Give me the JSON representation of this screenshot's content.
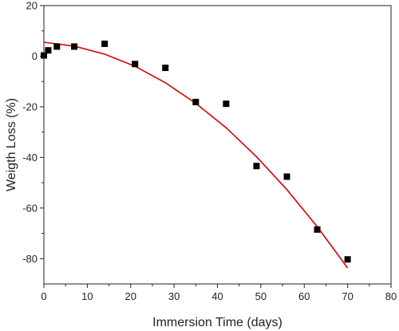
{
  "chart_data": {
    "type": "scatter",
    "xlabel": "Immersion Time (days)",
    "ylabel": "Weigth Loss (%)",
    "xlim": [
      0,
      80
    ],
    "ylim": [
      -90,
      20
    ],
    "x_ticks": [
      0,
      10,
      20,
      30,
      40,
      50,
      60,
      70,
      80
    ],
    "y_ticks": [
      20,
      0,
      -20,
      -40,
      -60,
      -80
    ],
    "grid": false,
    "series": [
      {
        "marker": "square",
        "color": "#000000",
        "points": [
          {
            "x": 0,
            "y": 0.3
          },
          {
            "x": 1,
            "y": 2.3
          },
          {
            "x": 3,
            "y": 3.8
          },
          {
            "x": 7,
            "y": 3.8
          },
          {
            "x": 14,
            "y": 4.9
          },
          {
            "x": 21,
            "y": -3.1
          },
          {
            "x": 28,
            "y": -4.6
          },
          {
            "x": 35,
            "y": -18.1
          },
          {
            "x": 42,
            "y": -18.8
          },
          {
            "x": 49,
            "y": -43.4
          },
          {
            "x": 56,
            "y": -47.6
          },
          {
            "x": 63,
            "y": -68.5
          },
          {
            "x": 70,
            "y": -80.3
          }
        ]
      },
      {
        "type": "line",
        "color": "#dd0000",
        "fit": "quadratic",
        "x": [
          0,
          7,
          14,
          21,
          28,
          35,
          42,
          49,
          56,
          63,
          70
        ],
        "values": [
          5.5,
          4.0,
          0.8,
          -4.0,
          -10.5,
          -18.6,
          -28.3,
          -39.7,
          -52.7,
          -67.4,
          -83.7
        ]
      }
    ]
  }
}
